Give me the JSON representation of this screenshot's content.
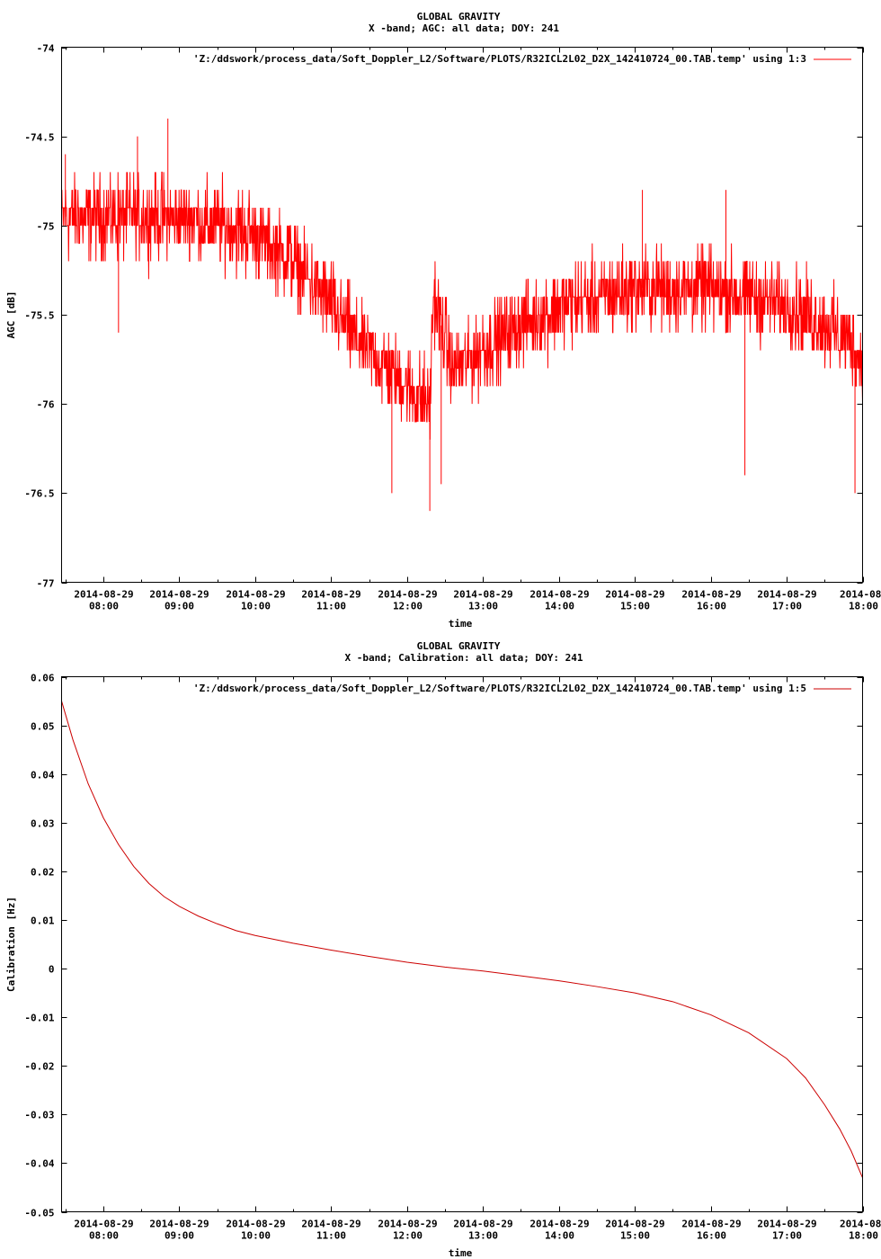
{
  "chart_data": [
    {
      "type": "line",
      "title": "GLOBAL GRAVITY",
      "subtitle": "X -band; AGC: all data; DOY: 241",
      "xlabel": "time",
      "ylabel": "AGC [dB]",
      "ylim": [
        -77,
        -74
      ],
      "yticks": [
        -74,
        -74.5,
        -75,
        -75.5,
        -76,
        -76.5,
        -77
      ],
      "ytick_labels": [
        "-74",
        "-74.5",
        "-75",
        "-75.5",
        "-76",
        "-76.5",
        "-77"
      ],
      "xlim_hours": [
        7.45,
        18.0
      ],
      "xticks": [
        {
          "date": "2014-08-29",
          "time": "08:00",
          "hour": 8
        },
        {
          "date": "2014-08-29",
          "time": "09:00",
          "hour": 9
        },
        {
          "date": "2014-08-29",
          "time": "10:00",
          "hour": 10
        },
        {
          "date": "2014-08-29",
          "time": "11:00",
          "hour": 11
        },
        {
          "date": "2014-08-29",
          "time": "12:00",
          "hour": 12
        },
        {
          "date": "2014-08-29",
          "time": "13:00",
          "hour": 13
        },
        {
          "date": "2014-08-29",
          "time": "14:00",
          "hour": 14
        },
        {
          "date": "2014-08-29",
          "time": "15:00",
          "hour": 15
        },
        {
          "date": "2014-08-29",
          "time": "16:00",
          "hour": 16
        },
        {
          "date": "2014-08-29",
          "time": "17:00",
          "hour": 17
        },
        {
          "date": "2014-08-",
          "time": "18:00",
          "hour": 18
        }
      ],
      "legend": "top-right",
      "grid": false,
      "series": [
        {
          "name": "'Z:/ddswork/process_data/Soft_Doppler_L2/Software/PLOTS/R32ICL2L02_D2X_142410724_00.TAB.temp' using 1:3",
          "color": "#ff0000",
          "noise_dB": 0.18,
          "trend": {
            "x": [
              7.45,
              8.0,
              8.5,
              9.0,
              9.5,
              10.0,
              10.5,
              11.0,
              11.3,
              11.6,
              12.0,
              12.3,
              12.35,
              12.6,
              13.0,
              13.5,
              14.0,
              14.5,
              15.0,
              15.5,
              16.0,
              16.5,
              17.0,
              17.5,
              17.8,
              18.0
            ],
            "y": [
              -74.95,
              -74.95,
              -74.95,
              -74.95,
              -75.0,
              -75.05,
              -75.2,
              -75.45,
              -75.62,
              -75.75,
              -75.9,
              -76.0,
              -75.4,
              -75.8,
              -75.7,
              -75.55,
              -75.45,
              -75.4,
              -75.35,
              -75.35,
              -75.35,
              -75.4,
              -75.45,
              -75.55,
              -75.65,
              -75.75
            ]
          },
          "spikes": [
            {
              "x": 7.5,
              "y": -74.6
            },
            {
              "x": 8.2,
              "y": -75.6
            },
            {
              "x": 8.45,
              "y": -74.5
            },
            {
              "x": 8.85,
              "y": -74.4
            },
            {
              "x": 11.8,
              "y": -76.5
            },
            {
              "x": 12.3,
              "y": -76.6
            },
            {
              "x": 12.45,
              "y": -76.45
            },
            {
              "x": 16.45,
              "y": -76.4
            },
            {
              "x": 15.1,
              "y": -74.8
            },
            {
              "x": 16.2,
              "y": -74.8
            },
            {
              "x": 17.9,
              "y": -76.5
            }
          ]
        }
      ]
    },
    {
      "type": "line",
      "title": "GLOBAL GRAVITY",
      "subtitle": "X -band; Calibration: all data; DOY: 241",
      "xlabel": "time",
      "ylabel": "Calibration [Hz]",
      "ylim": [
        -0.05,
        0.06
      ],
      "yticks": [
        0.06,
        0.05,
        0.04,
        0.03,
        0.02,
        0.01,
        0,
        -0.01,
        -0.02,
        -0.03,
        -0.04,
        -0.05
      ],
      "ytick_labels": [
        "0.06",
        "0.05",
        "0.04",
        "0.03",
        "0.02",
        "0.01",
        "0",
        "-0.01",
        "-0.02",
        "-0.03",
        "-0.04",
        "-0.05"
      ],
      "xlim_hours": [
        7.45,
        18.0
      ],
      "xticks": [
        {
          "date": "2014-08-29",
          "time": "08:00",
          "hour": 8
        },
        {
          "date": "2014-08-29",
          "time": "09:00",
          "hour": 9
        },
        {
          "date": "2014-08-29",
          "time": "10:00",
          "hour": 10
        },
        {
          "date": "2014-08-29",
          "time": "11:00",
          "hour": 11
        },
        {
          "date": "2014-08-29",
          "time": "12:00",
          "hour": 12
        },
        {
          "date": "2014-08-29",
          "time": "13:00",
          "hour": 13
        },
        {
          "date": "2014-08-29",
          "time": "14:00",
          "hour": 14
        },
        {
          "date": "2014-08-29",
          "time": "15:00",
          "hour": 15
        },
        {
          "date": "2014-08-29",
          "time": "16:00",
          "hour": 16
        },
        {
          "date": "2014-08-29",
          "time": "17:00",
          "hour": 17
        },
        {
          "date": "2014-08-",
          "time": "18:00",
          "hour": 18
        }
      ],
      "legend": "top-right",
      "grid": false,
      "series": [
        {
          "name": "'Z:/ddswork/process_data/Soft_Doppler_L2/Software/PLOTS/R32ICL2L02_D2X_142410724_00.TAB.temp' using 1:5",
          "color": "#cc0000",
          "x": [
            7.45,
            7.6,
            7.8,
            8.0,
            8.2,
            8.4,
            8.6,
            8.8,
            9.0,
            9.25,
            9.5,
            9.75,
            10.0,
            10.5,
            11.0,
            11.5,
            12.0,
            12.5,
            13.0,
            13.5,
            14.0,
            14.5,
            15.0,
            15.5,
            16.0,
            16.5,
            17.0,
            17.25,
            17.5,
            17.7,
            17.85,
            18.0
          ],
          "y": [
            0.055,
            0.047,
            0.038,
            0.031,
            0.0255,
            0.021,
            0.0175,
            0.0148,
            0.0128,
            0.0108,
            0.0092,
            0.0078,
            0.0068,
            0.0052,
            0.0038,
            0.0025,
            0.0013,
            0.0003,
            -0.0005,
            -0.0015,
            -0.0025,
            -0.0037,
            -0.005,
            -0.0068,
            -0.0095,
            -0.0132,
            -0.0185,
            -0.0225,
            -0.028,
            -0.033,
            -0.0375,
            -0.043
          ]
        }
      ]
    }
  ]
}
